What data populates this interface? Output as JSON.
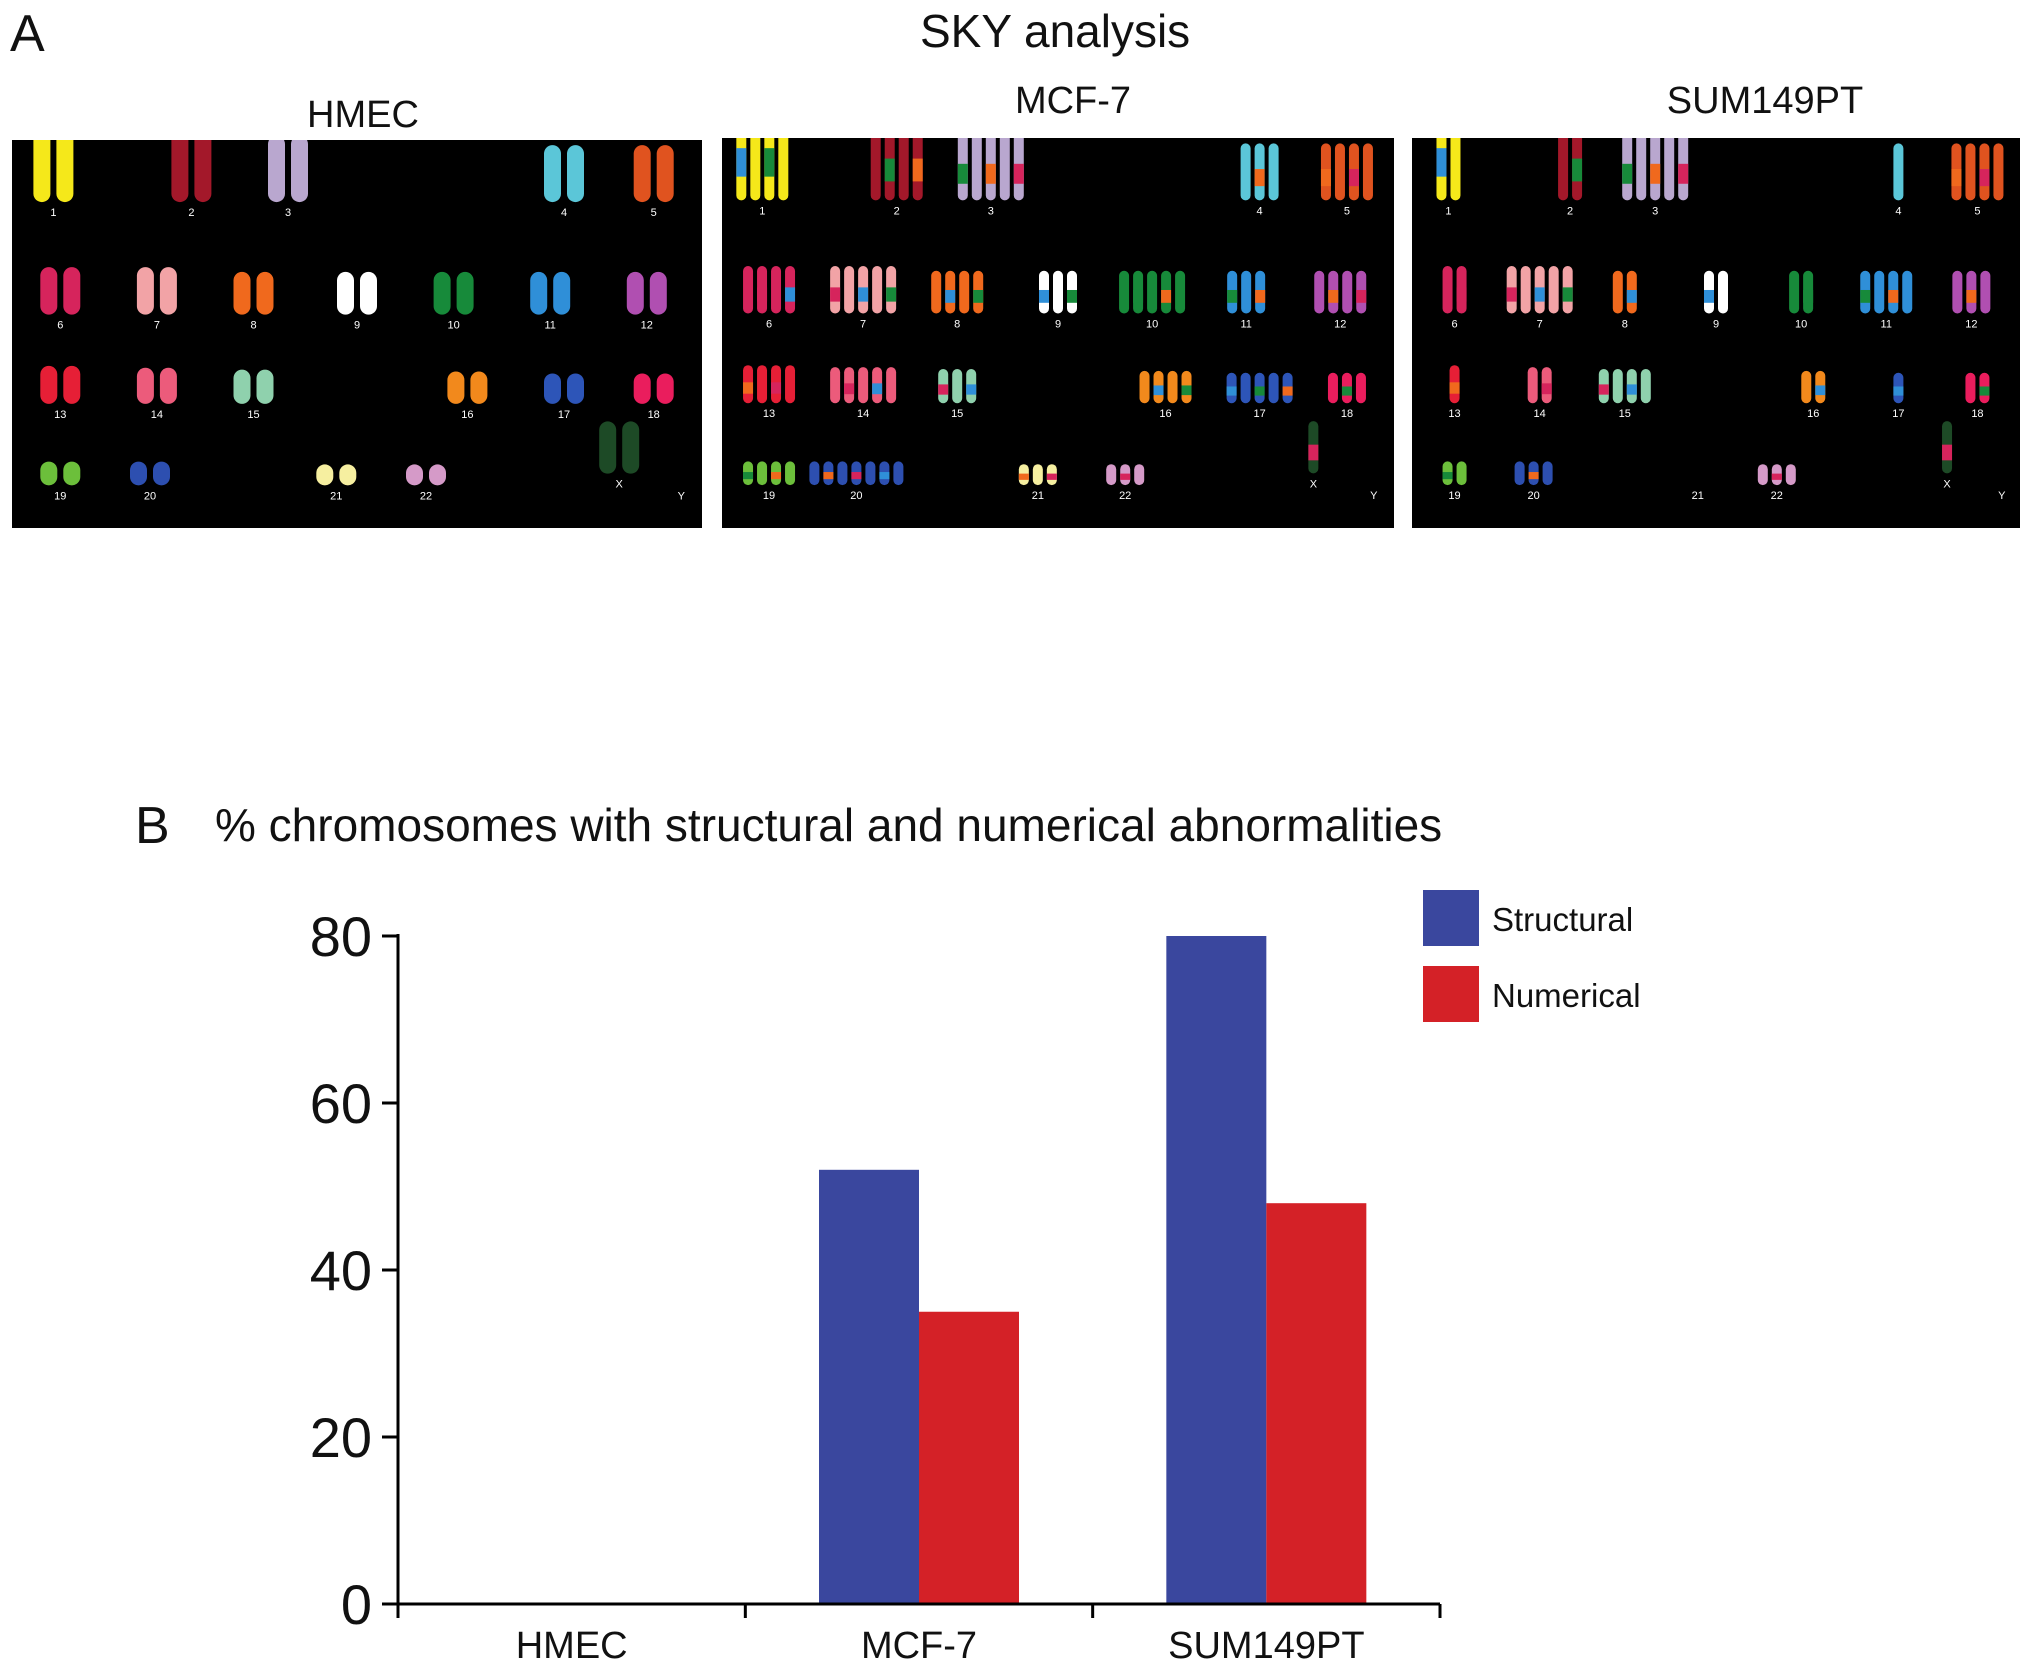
{
  "panel_a": {
    "letter": "A",
    "title": "SKY analysis",
    "karyotypes": [
      {
        "name": "HMEC"
      },
      {
        "name": "MCF-7"
      },
      {
        "name": "SUM149PT"
      }
    ],
    "chromosome_labels": [
      "1",
      "2",
      "3",
      "4",
      "5",
      "6",
      "7",
      "8",
      "9",
      "10",
      "11",
      "12",
      "13",
      "14",
      "15",
      "16",
      "17",
      "18",
      "19",
      "20",
      "21",
      "22",
      "X",
      "Y"
    ]
  },
  "panel_b": {
    "letter": "B",
    "title": "% chromosomes with structural and numerical abnormalities"
  },
  "colors": {
    "structural": "#3a479e",
    "numerical": "#d42127"
  },
  "chart_data": {
    "type": "bar",
    "categories": [
      "HMEC",
      "MCF-7",
      "SUM149PT"
    ],
    "series": [
      {
        "name": "Structural",
        "values": [
          0,
          52,
          80
        ]
      },
      {
        "name": "Numerical",
        "values": [
          0,
          35,
          48
        ]
      }
    ],
    "title": "% chromosomes with structural and numerical abnormalities",
    "xlabel": "",
    "ylabel": "",
    "ylim": [
      0,
      80
    ],
    "yticks": [
      0,
      20,
      40,
      60,
      80
    ],
    "legend": "top-right",
    "grid": false
  }
}
